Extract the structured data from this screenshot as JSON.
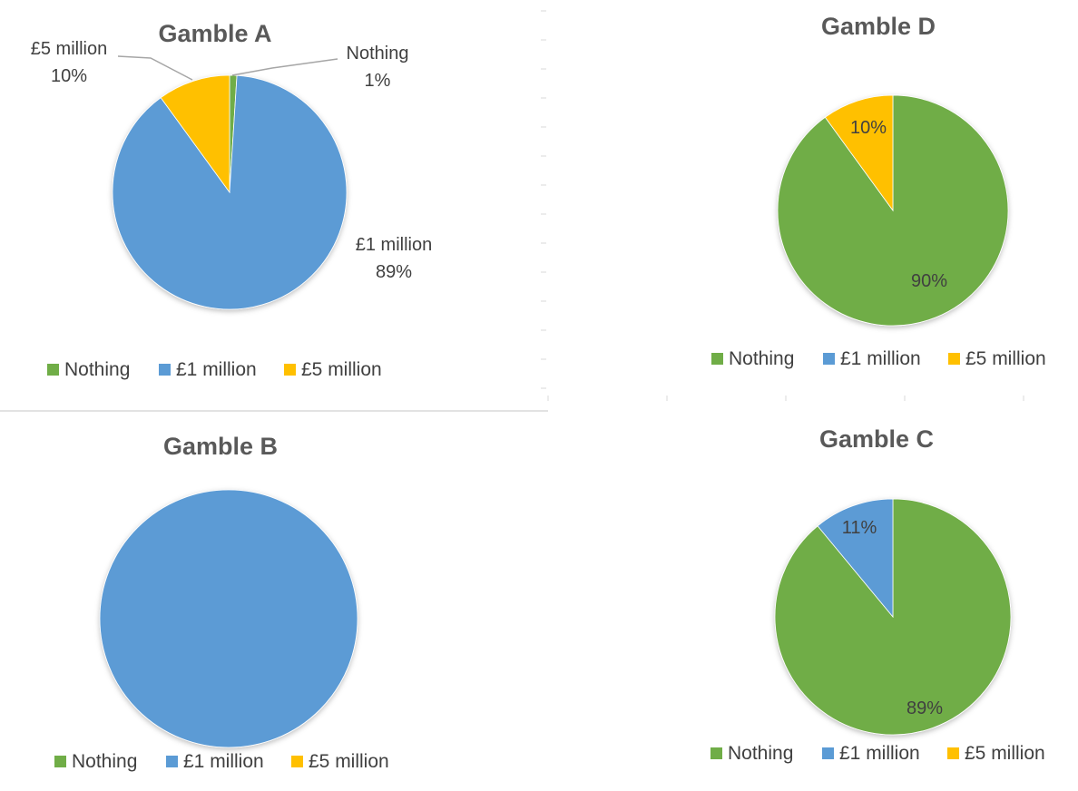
{
  "colors": {
    "Nothing": "#70ad47",
    "£1 million": "#5b9bd5",
    "£5 million": "#ffc000"
  },
  "legend_items": [
    "Nothing",
    "£1 million",
    "£5 million"
  ],
  "chart_data": [
    {
      "type": "pie",
      "title": "Gamble A",
      "categories": [
        "Nothing",
        "£1 million",
        "£5 million"
      ],
      "values": [
        1,
        89,
        10
      ],
      "data_labels": [
        "Nothing 1%",
        "£1 million 89%",
        "£5 million 10%"
      ],
      "legend": "bottom"
    },
    {
      "type": "pie",
      "title": "Gamble D",
      "categories": [
        "Nothing",
        "£1 million",
        "£5 million"
      ],
      "values": [
        90,
        0,
        10
      ],
      "data_labels": [
        "90%",
        "",
        "10%"
      ],
      "legend": "bottom"
    },
    {
      "type": "pie",
      "title": "Gamble B",
      "categories": [
        "Nothing",
        "£1 million",
        "£5 million"
      ],
      "values": [
        0,
        100,
        0
      ],
      "data_labels": [
        "",
        "",
        ""
      ],
      "legend": "bottom"
    },
    {
      "type": "pie",
      "title": "Gamble C",
      "categories": [
        "Nothing",
        "£1 million",
        "£5 million"
      ],
      "values": [
        89,
        11,
        0
      ],
      "data_labels": [
        "89%",
        "11%",
        ""
      ],
      "legend": "bottom"
    }
  ]
}
